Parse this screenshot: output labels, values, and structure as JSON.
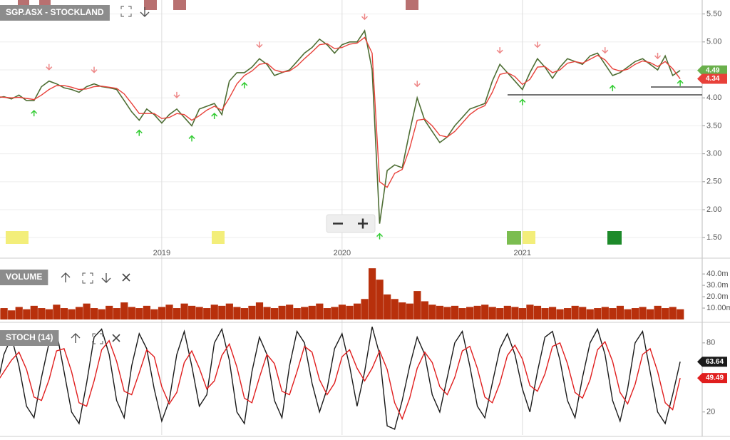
{
  "chart_data": [
    {
      "type": "line",
      "title": "SGP.ASX - STOCKLAND",
      "categories": [
        null,
        null,
        null,
        null,
        null,
        null,
        null,
        null,
        null,
        null,
        null,
        null,
        null,
        null,
        null,
        null,
        null,
        null,
        null,
        null,
        null,
        null,
        "2019",
        null,
        null,
        null,
        null,
        null,
        null,
        null,
        null,
        null,
        null,
        null,
        null,
        null,
        null,
        null,
        null,
        null,
        null,
        null,
        null,
        null,
        null,
        null,
        "2020",
        null,
        null,
        null,
        null,
        null,
        null,
        null,
        null,
        null,
        null,
        null,
        null,
        null,
        null,
        null,
        null,
        null,
        null,
        null,
        null,
        null,
        null,
        null,
        "2021",
        null,
        null,
        null,
        null,
        null,
        null,
        null,
        null,
        null,
        null,
        null,
        null,
        null,
        null,
        null,
        null,
        null,
        null,
        null,
        null,
        null
      ],
      "series": [
        {
          "color": "#4e6e34",
          "values": [
            4.0,
            4.02,
            3.98,
            4.05,
            3.95,
            3.95,
            4.2,
            4.3,
            4.25,
            4.18,
            4.15,
            4.1,
            4.2,
            4.25,
            4.2,
            4.18,
            4.15,
            3.95,
            3.75,
            3.6,
            3.8,
            3.7,
            3.55,
            3.7,
            3.8,
            3.65,
            3.5,
            3.8,
            3.85,
            3.9,
            3.7,
            4.3,
            4.45,
            4.45,
            4.55,
            4.7,
            4.6,
            4.4,
            4.45,
            4.5,
            4.65,
            4.8,
            4.9,
            5.05,
            4.95,
            4.8,
            4.95,
            5.0,
            5.0,
            5.2,
            4.5,
            1.75,
            2.7,
            2.8,
            2.75,
            3.4,
            4.0,
            3.6,
            3.4,
            3.2,
            3.3,
            3.5,
            3.65,
            3.8,
            3.85,
            3.9,
            4.3,
            4.6,
            4.45,
            4.3,
            4.15,
            4.45,
            4.7,
            4.55,
            4.35,
            4.55,
            4.7,
            4.65,
            4.6,
            4.75,
            4.8,
            4.6,
            4.4,
            4.45,
            4.55,
            4.65,
            4.7,
            4.6,
            4.5,
            4.75,
            4.4,
            4.49
          ]
        },
        {
          "color": "#e8413a",
          "values": [
            4.02,
            4.01,
            4.0,
            4.01,
            3.99,
            3.97,
            4.05,
            4.15,
            4.22,
            4.22,
            4.19,
            4.15,
            4.16,
            4.2,
            4.21,
            4.19,
            4.17,
            4.07,
            3.9,
            3.72,
            3.72,
            3.72,
            3.63,
            3.65,
            3.72,
            3.7,
            3.6,
            3.68,
            3.78,
            3.85,
            3.78,
            4.0,
            4.25,
            4.4,
            4.48,
            4.6,
            4.62,
            4.5,
            4.46,
            4.48,
            4.57,
            4.7,
            4.82,
            4.95,
            4.97,
            4.88,
            4.9,
            4.96,
            4.98,
            5.08,
            4.8,
            2.5,
            2.4,
            2.65,
            2.72,
            3.1,
            3.6,
            3.62,
            3.5,
            3.33,
            3.3,
            3.4,
            3.55,
            3.7,
            3.8,
            3.86,
            4.1,
            4.42,
            4.45,
            4.38,
            4.24,
            4.33,
            4.55,
            4.56,
            4.45,
            4.5,
            4.62,
            4.65,
            4.62,
            4.69,
            4.76,
            4.68,
            4.52,
            4.48,
            4.51,
            4.6,
            4.66,
            4.63,
            4.56,
            4.65,
            4.52,
            4.34
          ]
        }
      ],
      "ylim": [
        1.35,
        5.75
      ],
      "yticks": [
        {
          "value": 1.5,
          "label": "1.50"
        },
        {
          "value": 2,
          "label": "2.00"
        },
        {
          "value": 2.5,
          "label": "2.50"
        },
        {
          "value": 3,
          "label": "3.00"
        },
        {
          "value": 3.5,
          "label": "3.50"
        },
        {
          "value": 4,
          "label": "4.00"
        },
        {
          "value": 4.5,
          "label": "4.50"
        },
        {
          "value": 5,
          "label": "5.00"
        },
        {
          "value": 5.5,
          "label": "5.50"
        }
      ],
      "grid": true
    },
    {
      "type": "bar",
      "title": "VOLUME",
      "color": "#b8300c",
      "values": [
        9,
        10,
        8,
        11,
        9,
        12,
        10,
        9,
        13,
        10,
        9,
        11,
        14,
        10,
        9,
        12,
        10,
        15,
        11,
        10,
        12,
        9,
        11,
        13,
        10,
        14,
        12,
        11,
        10,
        13,
        12,
        14,
        11,
        10,
        12,
        15,
        11,
        10,
        12,
        13,
        10,
        11,
        12,
        14,
        10,
        11,
        13,
        12,
        14,
        18,
        45,
        35,
        22,
        18,
        15,
        14,
        25,
        16,
        13,
        12,
        11,
        12,
        10,
        11,
        12,
        13,
        11,
        10,
        12,
        11,
        10,
        13,
        12,
        10,
        11,
        9,
        10,
        12,
        11,
        9,
        10,
        11,
        10,
        12,
        9,
        10,
        11,
        9,
        12,
        10,
        11,
        9
      ],
      "ylim": [
        0,
        52
      ],
      "yticks": [
        {
          "value": 10,
          "label": "10.00m"
        },
        {
          "value": 20,
          "label": "20.0m"
        },
        {
          "value": 30,
          "label": "30.0m"
        },
        {
          "value": 40,
          "label": "40.0m"
        }
      ]
    },
    {
      "type": "line",
      "title": "STOCH (14)",
      "series": [
        {
          "color": "#1a1a1a",
          "values": [
            40,
            70,
            85,
            60,
            25,
            15,
            50,
            80,
            90,
            55,
            20,
            10,
            45,
            85,
            92,
            70,
            30,
            15,
            60,
            88,
            75,
            40,
            12,
            30,
            70,
            90,
            60,
            25,
            35,
            80,
            92,
            65,
            20,
            10,
            55,
            85,
            70,
            30,
            15,
            60,
            90,
            80,
            45,
            20,
            40,
            75,
            88,
            60,
            25,
            55,
            94,
            70,
            8,
            5,
            30,
            60,
            85,
            70,
            35,
            20,
            50,
            80,
            90,
            60,
            25,
            15,
            45,
            75,
            88,
            70,
            40,
            20,
            55,
            85,
            90,
            65,
            30,
            15,
            50,
            80,
            92,
            70,
            30,
            12,
            40,
            80,
            90,
            55,
            20,
            10,
            35,
            63.64
          ]
        },
        {
          "color": "#e01e1e",
          "values": [
            45,
            55,
            65,
            72,
            57,
            33,
            30,
            48,
            73,
            75,
            55,
            28,
            25,
            47,
            74,
            82,
            64,
            38,
            35,
            54,
            74,
            68,
            42,
            27,
            37,
            63,
            73,
            58,
            40,
            47,
            69,
            79,
            59,
            32,
            28,
            50,
            70,
            62,
            38,
            35,
            55,
            77,
            72,
            48,
            35,
            45,
            68,
            74,
            58,
            47,
            58,
            73,
            57,
            28,
            14,
            32,
            58,
            72,
            63,
            42,
            35,
            50,
            73,
            77,
            58,
            33,
            28,
            45,
            69,
            78,
            66,
            43,
            38,
            53,
            77,
            80,
            62,
            37,
            32,
            48,
            74,
            81,
            64,
            37,
            27,
            44,
            70,
            75,
            55,
            28,
            22,
            49.49
          ]
        }
      ],
      "ylim": [
        0,
        96
      ],
      "yticks": [
        20,
        80
      ]
    }
  ]
}
